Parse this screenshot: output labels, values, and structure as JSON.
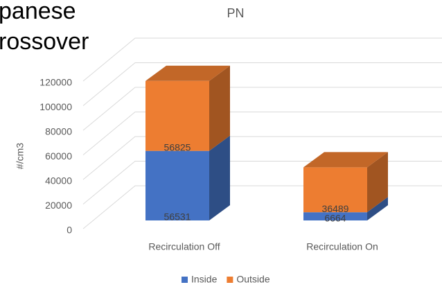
{
  "overlay_text": [
    "panese",
    "rossover"
  ],
  "chart_data": {
    "type": "bar3d-stacked",
    "title": "PN",
    "y_label": "#/cm3",
    "categories": [
      "Recirculation Off",
      "Recirculation On"
    ],
    "series": [
      {
        "name": "Inside",
        "color": "#4472c4",
        "values": [
          56531,
          6664
        ]
      },
      {
        "name": "Outside",
        "color": "#ed7d31",
        "values": [
          56825,
          36489
        ]
      }
    ],
    "ylim": [
      0,
      120000
    ],
    "yticks": [
      0,
      20000,
      40000,
      60000,
      80000,
      100000,
      120000
    ],
    "grid": true
  }
}
